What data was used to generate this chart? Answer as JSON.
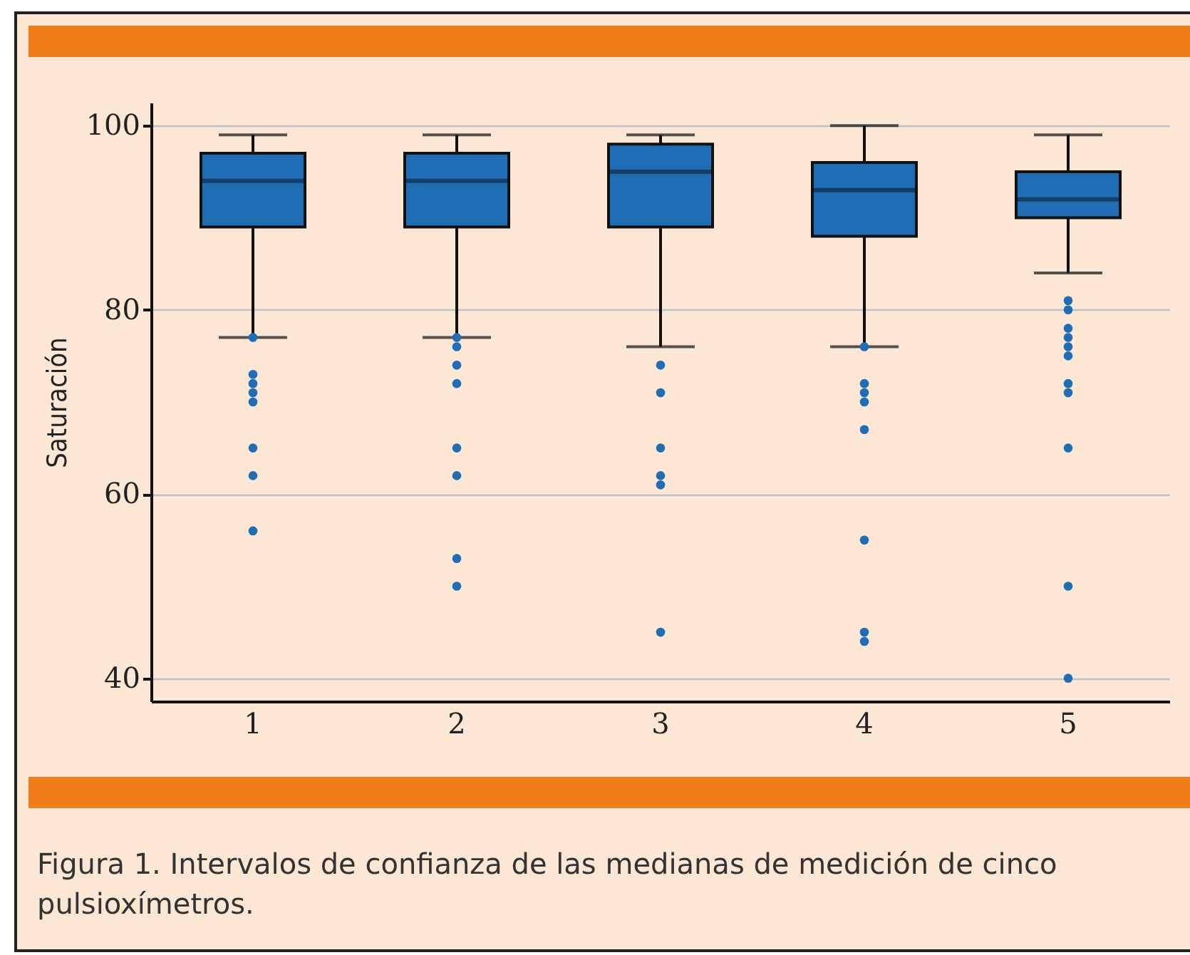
{
  "chart_data": {
    "type": "box",
    "ylabel": "Saturación",
    "categories": [
      "1",
      "2",
      "3",
      "4",
      "5"
    ],
    "ylim": [
      37.5,
      102.5
    ],
    "yticks": [
      40,
      60,
      80,
      100
    ],
    "grid": "y",
    "annotations": [
      "Figura 1. Intervalos de confianza de las medianas de medición de cinco pulsioxímetros."
    ],
    "series": [
      {
        "color": "#1f6eb5",
        "boxes": [
          {
            "low": 77,
            "q1": 89,
            "median": 94,
            "q3": 97,
            "high": 99,
            "outliers": [
              77,
              73,
              72,
              71,
              70,
              65,
              62,
              56
            ]
          },
          {
            "low": 77,
            "q1": 89,
            "median": 94,
            "q3": 97,
            "high": 99,
            "outliers": [
              77,
              76,
              74,
              72,
              65,
              62,
              53,
              50
            ]
          },
          {
            "low": 76,
            "q1": 89,
            "median": 95,
            "q3": 98,
            "high": 99,
            "outliers": [
              74,
              71,
              65,
              62,
              61,
              45
            ]
          },
          {
            "low": 76,
            "q1": 88,
            "median": 93,
            "q3": 96,
            "high": 100,
            "outliers": [
              76,
              72,
              71,
              70,
              67,
              55,
              45,
              44
            ]
          },
          {
            "low": 84,
            "q1": 90,
            "median": 92,
            "q3": 95,
            "high": 99,
            "outliers": [
              81,
              80,
              78,
              77,
              76,
              75,
              72,
              71,
              65,
              50,
              40
            ]
          }
        ]
      }
    ]
  }
}
